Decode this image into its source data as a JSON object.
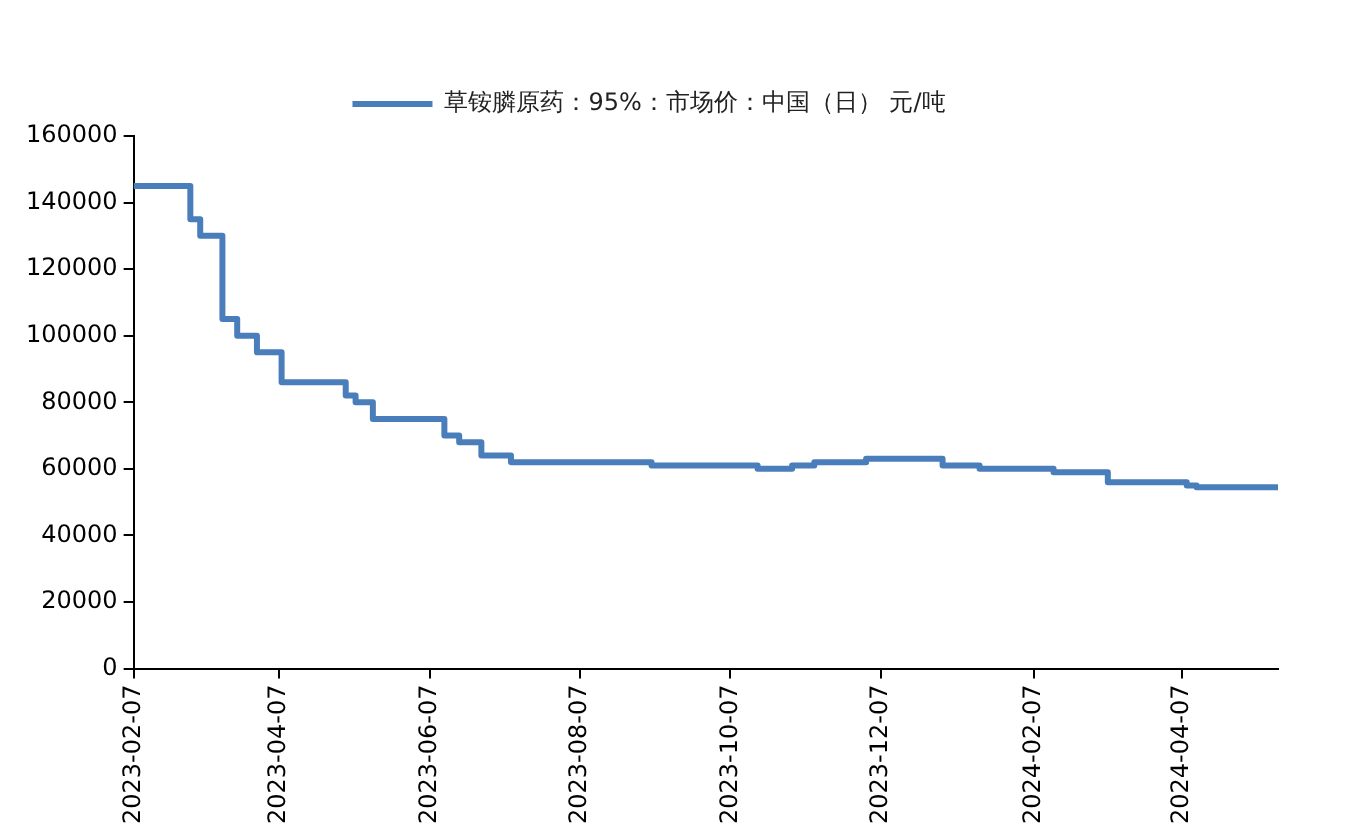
{
  "chart_data": {
    "type": "step",
    "legend": "top",
    "x": [
      "2023-02-07",
      "2023-03-02",
      "2023-03-06",
      "2023-03-15",
      "2023-03-21",
      "2023-03-29",
      "2023-04-08",
      "2023-05-04",
      "2023-05-08",
      "2023-05-15",
      "2023-06-13",
      "2023-06-19",
      "2023-06-28",
      "2023-07-10",
      "2023-09-05",
      "2023-10-18",
      "2023-11-01",
      "2023-11-10",
      "2023-12-01",
      "2024-01-01",
      "2024-01-16",
      "2024-02-15",
      "2024-03-08",
      "2024-04-09",
      "2024-04-13",
      "2024-05-16"
    ],
    "series": [
      {
        "name": "草铵膦原药：95%：市场价：中国（日） 元/吨",
        "color": "#4a7ebb",
        "values": [
          145000,
          135000,
          130000,
          105000,
          100000,
          95000,
          86000,
          82000,
          80000,
          75000,
          70000,
          68000,
          64000,
          62000,
          61000,
          60000,
          61000,
          62000,
          63000,
          61000,
          60000,
          59000,
          56000,
          55000,
          54500,
          55000
        ]
      }
    ],
    "xlim": [
      "2023-02-07",
      "2024-05-16"
    ],
    "xticks": [
      "2023-02-07",
      "2023-04-07",
      "2023-06-07",
      "2023-08-07",
      "2023-10-07",
      "2023-12-07",
      "2024-02-07",
      "2024-04-07"
    ],
    "ylim": [
      0,
      160000
    ],
    "yticks": [
      0,
      20000,
      40000,
      60000,
      80000,
      100000,
      120000,
      140000,
      160000
    ],
    "grid": false
  }
}
